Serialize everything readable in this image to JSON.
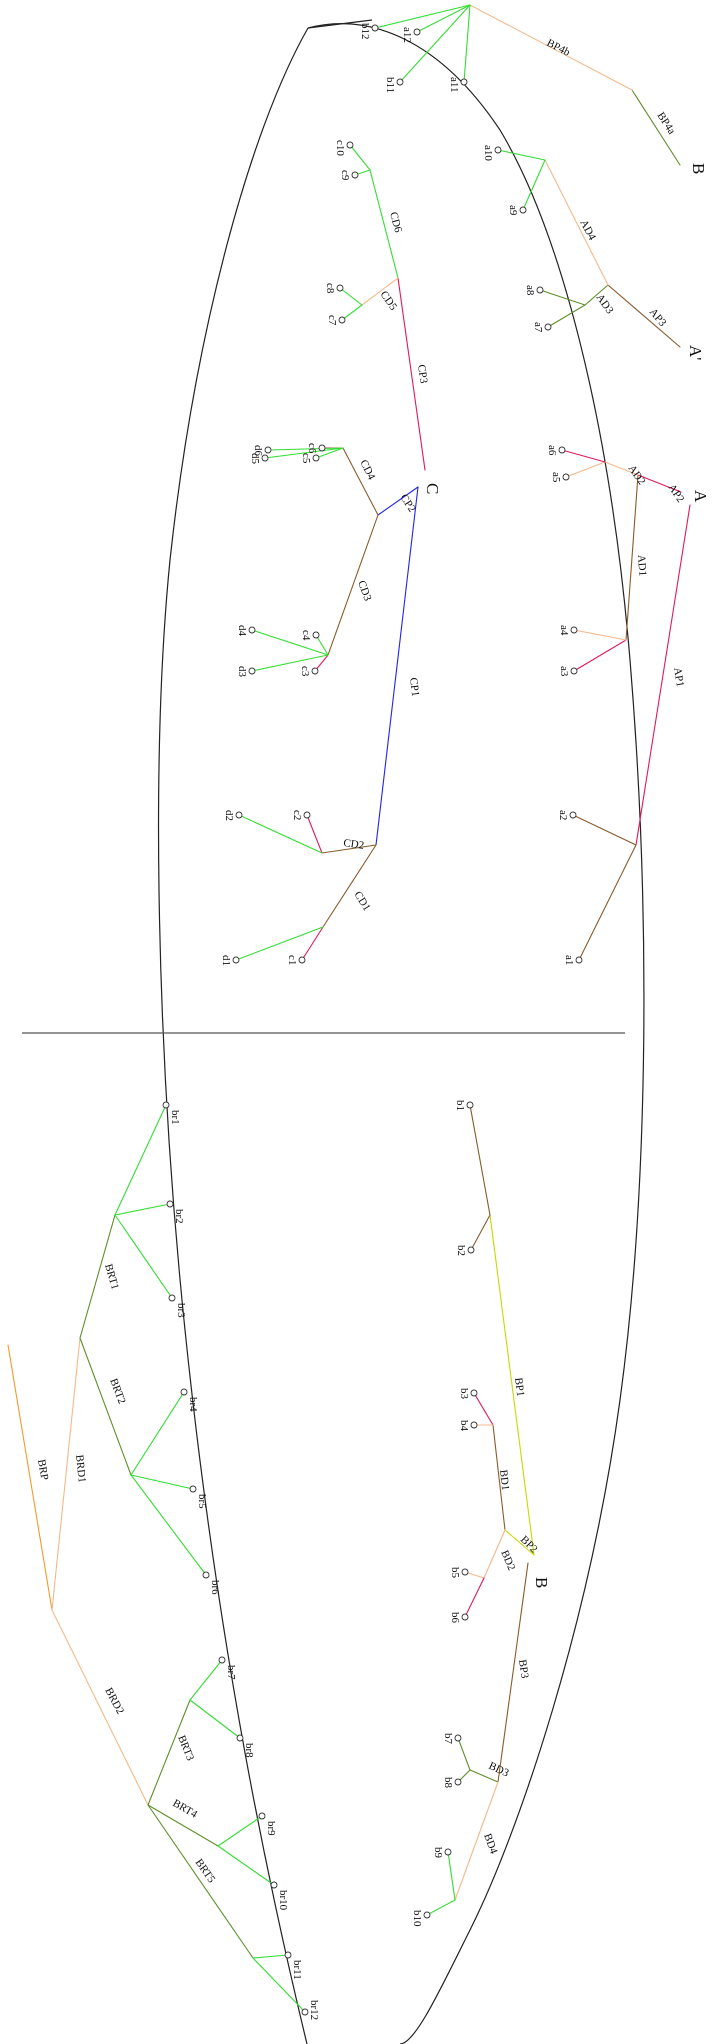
{
  "colors": {
    "green": "#33dd33",
    "brown": "#8a5a2b",
    "red": "#e0195c",
    "blue": "#2222ee",
    "peach": "#f4b98a",
    "olive": "#5f8f2a",
    "yellow": "#c8d800",
    "orange": "#f39a2c",
    "black": "#222222"
  },
  "section_labels": {
    "A": "A",
    "A_prime": "A'",
    "B_top": "B",
    "B_mid": "B",
    "C": "C"
  },
  "upper": {
    "a": [
      "a1",
      "a2",
      "a3",
      "a4",
      "a5",
      "a6",
      "a7",
      "a8",
      "a9",
      "a10",
      "a11",
      "a12"
    ],
    "b": [
      "b11",
      "b12"
    ],
    "c": [
      "c1",
      "c2",
      "c3",
      "c4",
      "c5",
      "c6",
      "c7",
      "c8",
      "c9",
      "c10"
    ],
    "d": [
      "d1",
      "d2",
      "d3",
      "d4",
      "d5",
      "d6"
    ],
    "edges": {
      "AP1": "AP1",
      "AP2": "AP2",
      "AP3": "AP3",
      "AD1": "AD1",
      "AD2": "AD2",
      "AD3": "AD3",
      "AD4": "AD4",
      "BP4a": "BP4a",
      "BP4b": "BP4b",
      "CP1": "CP1",
      "CP2": "CP2",
      "CP3": "CP3",
      "CD1": "CD1",
      "CD2": "CD2",
      "CD3": "CD3",
      "CD4": "CD4",
      "CD5": "CD5",
      "CD6": "CD6"
    }
  },
  "lower": {
    "b": [
      "b1",
      "b2",
      "b3",
      "b4",
      "b5",
      "b6",
      "b7",
      "b8",
      "b9",
      "b10"
    ],
    "br": [
      "br1",
      "br2",
      "br3",
      "br4",
      "br5",
      "br6",
      "br7",
      "br8",
      "br9",
      "br10",
      "br11",
      "br12"
    ],
    "edges": {
      "BP1": "BP1",
      "BP2": "BP2",
      "BP3": "BP3",
      "BD1": "BD1",
      "BD2": "BD2",
      "BD3": "BD3",
      "BD4": "BD4",
      "BRP": "BRP",
      "BRD1": "BRD1",
      "BRD2": "BRD2",
      "BRT1": "BRT1",
      "BRT2": "BRT2",
      "BRT3": "BRT3",
      "BRT4": "BRT4",
      "BRT5": "BRT5"
    }
  }
}
